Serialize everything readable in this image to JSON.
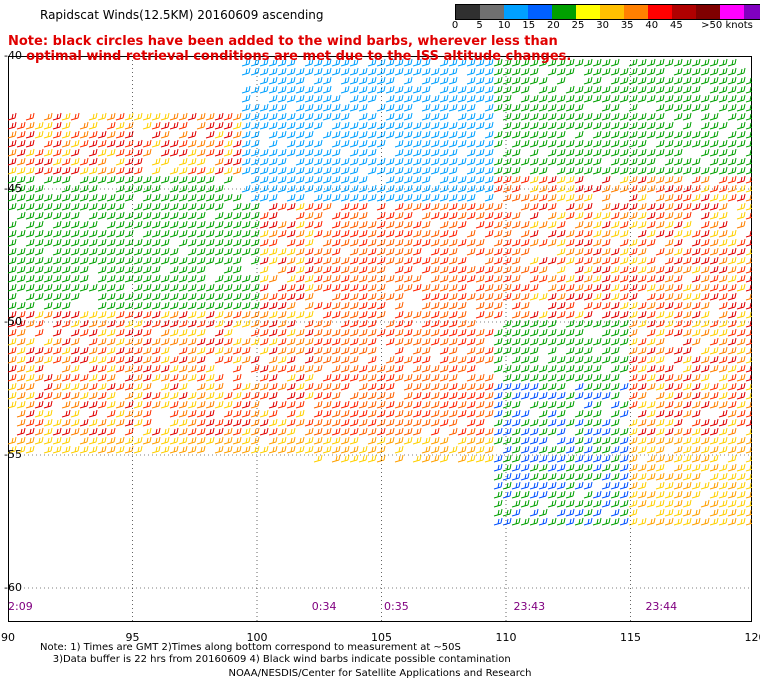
{
  "title": "Rapidscat Winds(12.5KM) 20160609 ascending",
  "note_line1": "Note: black circles have been added to the wind barbs, wherever less than",
  "note_line2": "optimal wind retrieval conditions are met due to the ISS altitude changes.",
  "legend": {
    "labels": [
      "0",
      "5",
      "10",
      "15",
      "20",
      "25",
      "30",
      "35",
      "40",
      "45",
      ">50 knots"
    ],
    "colors": [
      "#303030",
      "#707070",
      "#00a0ff",
      "#0060ff",
      "#00a000",
      "#ffff00",
      "#ffc000",
      "#ff8000",
      "#ff0000",
      "#b00000",
      "#800000",
      "#ff00ff",
      "#8000c0"
    ]
  },
  "map": {
    "lon_ticks": [
      "90",
      "95",
      "100",
      "105",
      "110",
      "115",
      "120"
    ],
    "lat_ticks": [
      "-40",
      "-45",
      "-50",
      "-55",
      "-60"
    ],
    "time_labels": [
      {
        "text": "2:09",
        "lon": 90
      },
      {
        "text": "0:34",
        "lon": 102.2
      },
      {
        "text": "0:35",
        "lon": 105.1
      },
      {
        "text": "23:43",
        "lon": 110.3
      },
      {
        "text": "23:44",
        "lon": 115.6
      }
    ]
  },
  "footnote_line1": "Note: 1) Times are GMT 2)Times along bottom correspond to measurement at ~50S",
  "footnote_line2": "3)Data buffer is 22 hrs from 20160609 4) Black wind barbs indicate possible contamination",
  "credit": "NOAA/NESDIS/Center for Satellite Applications and Research"
}
